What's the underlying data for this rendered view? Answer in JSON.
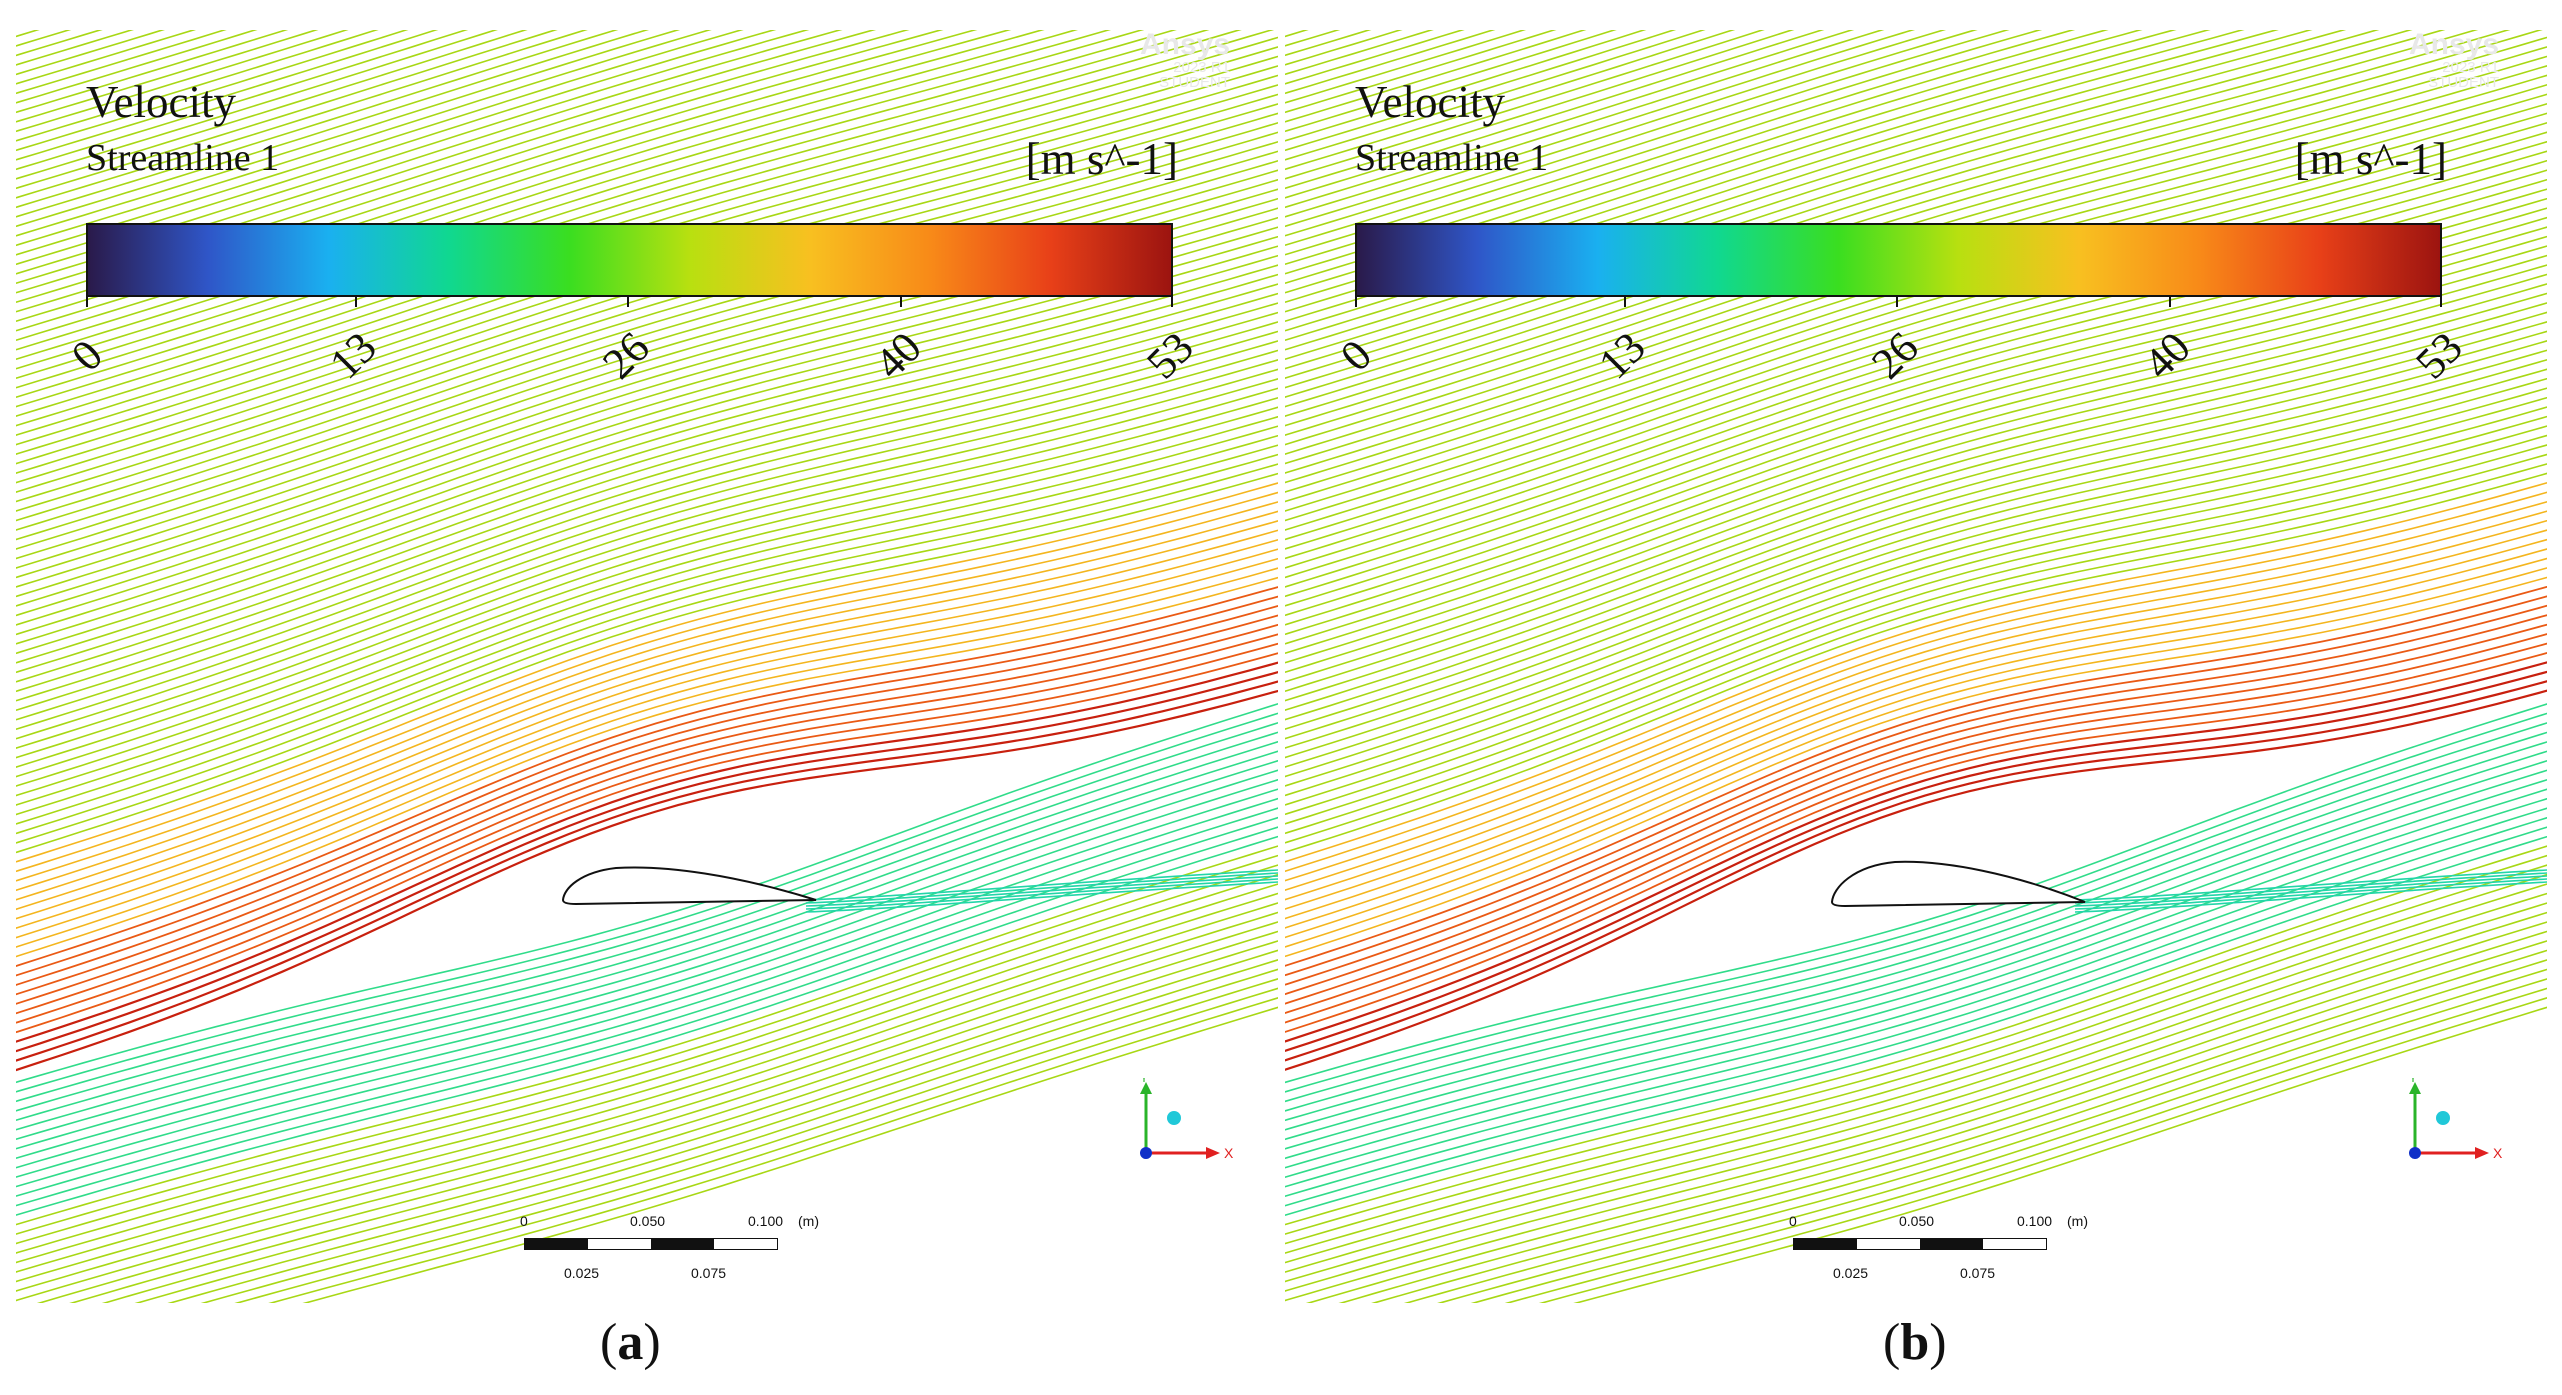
{
  "panels": [
    {
      "id": "a",
      "legend": {
        "title": "Velocity",
        "subtitle": "Streamline 1",
        "unit": "[m s^-1]"
      },
      "colorbar": {
        "ticks": [
          "0",
          "13",
          "26",
          "40",
          "53"
        ],
        "colors": [
          "#2a1a4a",
          "#2f56c8",
          "#1ab0f0",
          "#10d890",
          "#3ade20",
          "#b8e010",
          "#f8c020",
          "#f88a18",
          "#e84018",
          "#9c1410"
        ]
      },
      "brand": {
        "name": "Ansys",
        "version": "2023 R1",
        "product": "STUDENT"
      },
      "scale_bar": {
        "top_labels": [
          "0",
          "0.050",
          "0.100",
          "(m)"
        ],
        "bottom_labels": [
          "0.025",
          "0.075"
        ]
      },
      "triad": {
        "y_label": "Y",
        "x_label": "X"
      },
      "caption": {
        "prefix": "(",
        "letter": "a",
        "suffix": ")"
      }
    },
    {
      "id": "b",
      "legend": {
        "title": "Velocity",
        "subtitle": "Streamline 1",
        "unit": "[m s^-1]"
      },
      "colorbar": {
        "ticks": [
          "0",
          "13",
          "26",
          "40",
          "53"
        ],
        "colors": [
          "#2a1a4a",
          "#2f56c8",
          "#1ab0f0",
          "#10d890",
          "#3ade20",
          "#b8e010",
          "#f8c020",
          "#f88a18",
          "#e84018",
          "#9c1410"
        ]
      },
      "brand": {
        "name": "Ansys",
        "version": "2023 R1",
        "product": "STUDENT"
      },
      "scale_bar": {
        "top_labels": [
          "0",
          "0.050",
          "0.100",
          "(m)"
        ],
        "bottom_labels": [
          "0.025",
          "0.075"
        ]
      },
      "triad": {
        "y_label": "Y",
        "x_label": "X"
      },
      "caption": {
        "prefix": "(",
        "letter": "b",
        "suffix": ")"
      }
    }
  ],
  "flow_colors": {
    "freestream": "#a8d814",
    "accelerated": "#f4b61e",
    "peak": "#ea5a14",
    "max": "#c8200e",
    "wake": "#22d6a8",
    "lower": "#30dc8a"
  }
}
